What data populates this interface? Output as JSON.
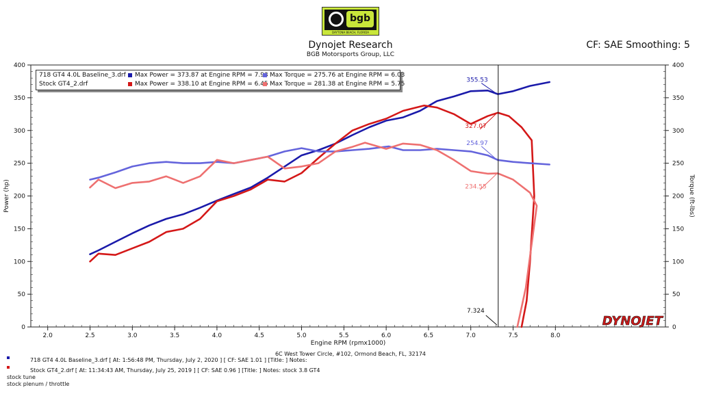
{
  "logo": {
    "name": "bgb",
    "caption": "DAYTONA BEACH, FLORIDA"
  },
  "header": {
    "title": "Dynojet Research",
    "subtitle": "BGB Motorsports Group, LLC",
    "cf": "CF: SAE Smoothing: 5"
  },
  "chart_data": {
    "type": "line",
    "xlabel": "Engine RPM (rpmx1000)",
    "ylabel_left": "Power (hp)",
    "ylabel_right": "Torque (ft-lbs)",
    "xlim": [
      1.8,
      9.3
    ],
    "ylim": [
      0,
      400
    ],
    "xticks": [
      "2.0",
      "2.5",
      "3.0",
      "3.5",
      "4.0",
      "4.5",
      "5.0",
      "5.5",
      "6.0",
      "6.5",
      "7.0",
      "7.5",
      "8.0"
    ],
    "yticks": [
      "0",
      "50",
      "100",
      "150",
      "200",
      "250",
      "300",
      "350",
      "400"
    ],
    "cursor": {
      "x": 7.324,
      "label": "7.324"
    },
    "series": [
      {
        "name": "718 GT4 4.0L Baseline_3.drf Power",
        "color": "#1a1aaa",
        "x": [
          2.5,
          2.6,
          2.8,
          3.0,
          3.2,
          3.4,
          3.6,
          3.8,
          4.0,
          4.2,
          4.4,
          4.6,
          4.8,
          5.0,
          5.2,
          5.4,
          5.6,
          5.8,
          6.0,
          6.2,
          6.4,
          6.6,
          6.8,
          7.0,
          7.2,
          7.32,
          7.5,
          7.7,
          7.93
        ],
        "y": [
          111,
          117,
          130,
          143,
          155,
          165,
          172,
          182,
          193,
          203,
          213,
          228,
          245,
          262,
          270,
          280,
          293,
          305,
          315,
          320,
          330,
          345,
          352,
          360,
          361,
          355.53,
          360,
          368,
          373.87
        ]
      },
      {
        "name": "Stock GT4_2.drf Power",
        "color": "#d41818",
        "x": [
          2.5,
          2.6,
          2.8,
          3.0,
          3.2,
          3.4,
          3.6,
          3.8,
          4.0,
          4.2,
          4.4,
          4.6,
          4.8,
          5.0,
          5.2,
          5.4,
          5.6,
          5.8,
          6.0,
          6.2,
          6.45,
          6.6,
          6.8,
          7.0,
          7.2,
          7.32,
          7.45,
          7.6,
          7.72,
          7.75,
          7.7,
          7.66,
          7.6
        ],
        "y": [
          100,
          112,
          110,
          120,
          130,
          145,
          150,
          165,
          192,
          200,
          210,
          225,
          222,
          235,
          258,
          280,
          300,
          310,
          318,
          330,
          338.1,
          335,
          325,
          310,
          322,
          327.07,
          322,
          305,
          285,
          200,
          100,
          40,
          0
        ]
      },
      {
        "name": "718 GT4 4.0L Baseline_3.drf Torque",
        "color": "#6464dc",
        "x": [
          2.5,
          2.6,
          2.8,
          3.0,
          3.2,
          3.4,
          3.6,
          3.8,
          4.0,
          4.2,
          4.4,
          4.6,
          4.8,
          5.0,
          5.2,
          5.4,
          5.6,
          5.8,
          6.03,
          6.2,
          6.4,
          6.6,
          6.8,
          7.0,
          7.2,
          7.32,
          7.5,
          7.7,
          7.93
        ],
        "y": [
          225,
          228,
          236,
          245,
          250,
          252,
          250,
          250,
          252,
          250,
          255,
          260,
          268,
          273,
          268,
          268,
          270,
          272,
          275.76,
          270,
          270,
          272,
          270,
          268,
          262,
          254.97,
          252,
          250,
          248
        ]
      },
      {
        "name": "Stock GT4_2.drf Torque",
        "color": "#ee7070",
        "x": [
          2.5,
          2.6,
          2.8,
          3.0,
          3.2,
          3.4,
          3.6,
          3.8,
          4.0,
          4.2,
          4.4,
          4.6,
          4.8,
          5.0,
          5.2,
          5.4,
          5.6,
          5.75,
          6.0,
          6.2,
          6.4,
          6.6,
          6.8,
          7.0,
          7.2,
          7.32,
          7.5,
          7.7,
          7.78,
          7.65,
          7.55
        ],
        "y": [
          213,
          225,
          212,
          220,
          222,
          230,
          220,
          230,
          255,
          250,
          255,
          260,
          242,
          245,
          250,
          268,
          275,
          281.38,
          272,
          280,
          278,
          270,
          255,
          238,
          234,
          234.55,
          225,
          205,
          185,
          60,
          0
        ]
      }
    ],
    "annotations": [
      {
        "text": "355.53",
        "x": 7.32,
        "y": 355.53,
        "color": "#1a1aaa"
      },
      {
        "text": "327.07",
        "x": 7.32,
        "y": 327.07,
        "color": "#d41818"
      },
      {
        "text": "254.97",
        "x": 7.32,
        "y": 254.97,
        "color": "#6464dc"
      },
      {
        "text": "234.55",
        "x": 7.32,
        "y": 234.55,
        "color": "#ee7070"
      }
    ],
    "legend": [
      {
        "file": "718 GT4 4.0L Baseline_3.drf",
        "power": "Max Power = 373.87 at Engine RPM = 7.93",
        "torque": "Max Torque = 275.76 at Engine RPM = 6.03",
        "pcolor": "#1a1aaa",
        "tcolor": "#6464dc"
      },
      {
        "file": "Stock GT4_2.drf",
        "power": "Max Power = 338.10 at Engine RPM = 6.45",
        "torque": "Max Torque = 281.38 at Engine RPM = 5.75",
        "pcolor": "#d41818",
        "tcolor": "#ee7070"
      }
    ]
  },
  "watermark": "DYNOJET",
  "footer": {
    "address": "6C West Tower Circle, #102, Ormond Beach, FL, 32174",
    "run1": "718 GT4 4.0L Baseline_3.drf [ At: 1:56:48 PM, Thursday, July 2, 2020 ] [ CF: SAE 1.01 ] [Title: ]  Notes:",
    "run2": "Stock GT4_2.drf [ At: 11:34:43 AM, Thursday, July 25, 2019 ] [ CF: SAE 0.96 ] [Title: ]  Notes: stock 3.8 GT4",
    "note1": "stock tune",
    "note2": "stock plenum / throttle",
    "run1_color": "#1a1aaa",
    "run2_color": "#d41818"
  }
}
